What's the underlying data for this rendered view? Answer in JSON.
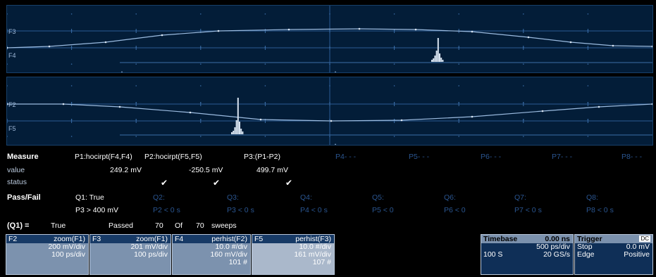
{
  "colors": {
    "grid_bg": "#031d38",
    "trace": "#9bbbe0",
    "histogram": "#d8e3f0",
    "box_bg": "#7c92ae",
    "box_title": "#173a66"
  },
  "traces": {
    "top_labels": [
      "F3",
      "F4"
    ],
    "bottom_labels": [
      "F2",
      "F5"
    ]
  },
  "measure": {
    "header": "Measure",
    "row_value_label": "value",
    "row_status_label": "status",
    "params": [
      {
        "name": "P1:hocirpt(F4,F4)",
        "value": "249.2 mV",
        "status": "✔"
      },
      {
        "name": "P2:hocirpt(F5,F5)",
        "value": "-250.5 mV",
        "status": "✔"
      },
      {
        "name": "P3:(P1-P2)",
        "value": "499.7 mV",
        "status": "✔"
      },
      {
        "name": "P4- - -",
        "value": "",
        "status": ""
      },
      {
        "name": "P5- - -",
        "value": "",
        "status": ""
      },
      {
        "name": "P6- - -",
        "value": "",
        "status": ""
      },
      {
        "name": "P7- - -",
        "value": "",
        "status": ""
      },
      {
        "name": "P8- - -",
        "value": "",
        "status": ""
      }
    ]
  },
  "passfail": {
    "header": "Pass/Fail",
    "q1": "Q1: True",
    "q1_cond": "P3 > 400 mV",
    "others": [
      {
        "name": "Q2:",
        "cond": "P2 < 0 s"
      },
      {
        "name": "Q3:",
        "cond": "P3 < 0 s"
      },
      {
        "name": "Q4:",
        "cond": "P4 < 0 s"
      },
      {
        "name": "Q5:",
        "cond": "P5 < 0"
      },
      {
        "name": "Q6:",
        "cond": "P6 < 0"
      },
      {
        "name": "Q7:",
        "cond": "P7 < 0 s"
      },
      {
        "name": "Q8:",
        "cond": "P8 < 0 s"
      }
    ],
    "summary": {
      "q": "(Q1) =",
      "result": "True",
      "passed_label": "Passed",
      "passed": "70",
      "of_label": "Of",
      "total": "70",
      "sweeps_label": "sweeps"
    }
  },
  "function_boxes": [
    {
      "id": "F2",
      "name": "zoom(F1)",
      "line1": "200 mV/div",
      "line2": "100 ps/div",
      "line3": ""
    },
    {
      "id": "F3",
      "name": "zoom(F1)",
      "line1": "201 mV/div",
      "line2": "100 ps/div",
      "line3": ""
    },
    {
      "id": "F4",
      "name": "perhist(F2)",
      "line1": "10.0 #/div",
      "line2": "160 mV/div",
      "line3": "101 #"
    },
    {
      "id": "F5",
      "name": "perhist(F3)",
      "line1": "10.0 #/div",
      "line2": "161 mV/div",
      "line3": "107 #"
    }
  ],
  "timebase": {
    "label": "Timebase",
    "offset": "0.00 ns",
    "per_div": "500 ps/div",
    "samples": "100 S",
    "rate": "20 GS/s"
  },
  "trigger": {
    "label": "Trigger",
    "badge": "DC",
    "mode": "Stop",
    "level": "0.0 mV",
    "type": "Edge",
    "slope": "Positive"
  }
}
